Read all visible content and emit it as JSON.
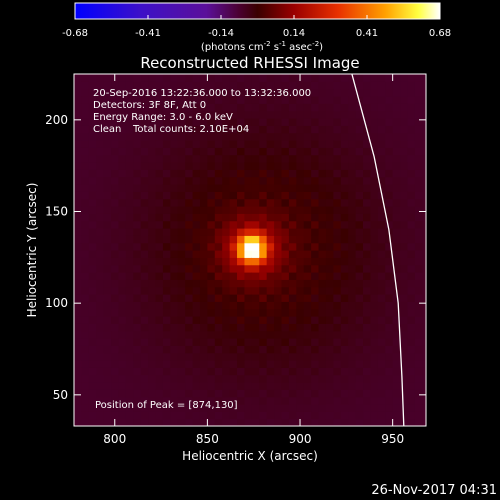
{
  "chart_data": {
    "type": "heatmap",
    "title": "Reconstructed RHESSI Image",
    "xlabel": "Heliocentric X (arcsec)",
    "ylabel": "Heliocentric Y (arcsec)",
    "xlim": [
      778,
      968
    ],
    "ylim": [
      33,
      225
    ],
    "xticks": [
      800,
      850,
      900,
      950
    ],
    "yticks": [
      50,
      100,
      150,
      200
    ],
    "colorbar": {
      "min": -0.68,
      "max": 0.68,
      "ticks": [
        "-0.68",
        "-0.41",
        "-0.14",
        "0.14",
        "0.41",
        "0.68"
      ],
      "unit_main": "(photons cm",
      "unit_sup1": "-2",
      "unit_mid": " s",
      "unit_sup2": "-1",
      "unit_mid2": " asec",
      "unit_sup3": "-2",
      "unit_end": ")"
    },
    "info": {
      "time_range": "20-Sep-2016 13:22:36.000 to 13:32:36.000",
      "detectors": "Detectors: 3F 8F, Att 0",
      "energy": "Energy Range: 3.0 - 6.0 keV",
      "method": "Clean",
      "counts": "Total counts: 2.10E+04"
    },
    "peak_label": "Position of Peak = [874,130]",
    "peak": {
      "x": 874,
      "y": 130,
      "value": 0.68
    },
    "diffuse_source": {
      "x": 880,
      "y": 130,
      "level": 0.12
    },
    "background_level": -0.06,
    "limb": [
      [
        928,
        225
      ],
      [
        940,
        180
      ],
      [
        948,
        140
      ],
      [
        953,
        100
      ],
      [
        955,
        60
      ],
      [
        956,
        33
      ]
    ]
  },
  "footer": {
    "timestamp": "26-Nov-2017 04:31"
  },
  "colors": {
    "background": "#000000",
    "text": "#ffffff"
  }
}
